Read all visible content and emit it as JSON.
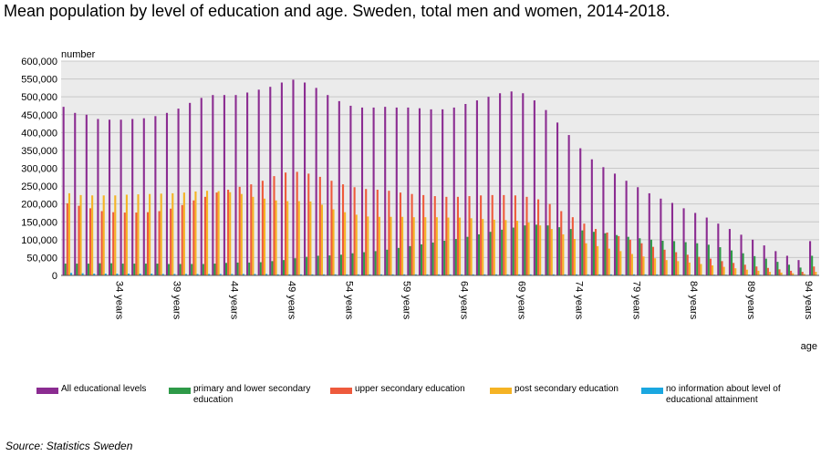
{
  "title": "Mean population by level of education and age. Sweden, total men and women, 2014-2018.",
  "source": "Source: Statistics Sweden",
  "chart_data": {
    "type": "bar",
    "ylabel": "number",
    "xlabel": "age",
    "ylim": [
      0,
      600000
    ],
    "yticks": [
      "0",
      "50,000",
      "100,000",
      "150,000",
      "200,000",
      "250,000",
      "300,000",
      "350,000",
      "400,000",
      "450,000",
      "500,000",
      "550,000",
      "600,000"
    ],
    "grid": true,
    "legend_position": "bottom",
    "categories": [
      "30 years",
      "31 years",
      "32 years",
      "33 years",
      "34 years",
      "35 years",
      "36 years",
      "37 years",
      "38 years",
      "39 years",
      "40 years",
      "41 years",
      "42 years",
      "43 years",
      "44 years",
      "45 years",
      "46 years",
      "47 years",
      "48 years",
      "49 years",
      "50 years",
      "51 years",
      "52 years",
      "53 years",
      "54 years",
      "55 years",
      "56 years",
      "57 years",
      "58 years",
      "59 years",
      "60 years",
      "61 years",
      "62 years",
      "63 years",
      "64 years",
      "65 years",
      "66 years",
      "67 years",
      "68 years",
      "69 years",
      "70 years",
      "71 years",
      "72 years",
      "73 years",
      "74 years",
      "75 years",
      "76 years",
      "77 years",
      "78 years",
      "79 years",
      "80 years",
      "81 years",
      "82 years",
      "83 years",
      "84 years",
      "85 years",
      "86 years",
      "87 years",
      "88 years",
      "89 years",
      "90 years",
      "91 years",
      "92 years",
      "93 years",
      "94 years",
      "95 years"
    ],
    "tick_labels": [
      "34 years",
      "39 years",
      "44 years",
      "49 years",
      "54 years",
      "59 years",
      "64 years",
      "69 years",
      "74 years",
      "79 years",
      "84 years",
      "89 years",
      "94 years"
    ],
    "series": [
      {
        "name": "All educational levels",
        "color": "#8B2C91",
        "values": [
          472000,
          455000,
          450000,
          438000,
          436000,
          436000,
          438000,
          440000,
          446000,
          455000,
          467000,
          483000,
          497000,
          505000,
          505000,
          505000,
          512000,
          520000,
          528000,
          540000,
          548000,
          540000,
          525000,
          505000,
          488000,
          475000,
          470000,
          470000,
          472000,
          470000,
          470000,
          468000,
          465000,
          465000,
          470000,
          480000,
          490000,
          500000,
          510000,
          515000,
          510000,
          490000,
          463000,
          428000,
          393000,
          356000,
          325000,
          303000,
          285000,
          265000,
          247000,
          230000,
          215000,
          203000,
          188000,
          175000,
          162000,
          145000,
          130000,
          114000,
          100000,
          84000,
          68000,
          55000,
          43000,
          96000
        ]
      },
      {
        "name": "primary and lower secondary education",
        "color": "#2E9A48",
        "values": [
          33000,
          33000,
          33000,
          34000,
          34000,
          33000,
          33000,
          33000,
          33000,
          32000,
          32000,
          32000,
          32000,
          33000,
          35000,
          36000,
          36000,
          37000,
          40000,
          43000,
          48000,
          52000,
          55000,
          56000,
          58000,
          62000,
          65000,
          68000,
          72000,
          77000,
          82000,
          87000,
          92000,
          97000,
          102000,
          108000,
          115000,
          122000,
          128000,
          134000,
          140000,
          142000,
          140000,
          135000,
          130000,
          126000,
          122000,
          118000,
          113000,
          108000,
          104000,
          100000,
          97000,
          96000,
          93000,
          90000,
          86000,
          79000,
          70000,
          62000,
          54000,
          47000,
          38000,
          30000,
          22000,
          55000
        ]
      },
      {
        "name": "upper secondary education",
        "color": "#EE5A3C",
        "values": [
          202000,
          195000,
          188000,
          180000,
          177000,
          176000,
          176000,
          177000,
          180000,
          187000,
          197000,
          210000,
          220000,
          232000,
          240000,
          248000,
          255000,
          265000,
          278000,
          288000,
          290000,
          285000,
          276000,
          265000,
          255000,
          247000,
          242000,
          240000,
          237000,
          232000,
          228000,
          225000,
          222000,
          220000,
          220000,
          222000,
          224000,
          225000,
          225000,
          224000,
          220000,
          213000,
          200000,
          180000,
          163000,
          145000,
          130000,
          120000,
          110000,
          100000,
          90000,
          80000,
          72000,
          65000,
          58000,
          52000,
          47000,
          40000,
          35000,
          30000,
          25000,
          21000,
          17000,
          13000,
          10000,
          25000
        ]
      },
      {
        "name": "post secondary education",
        "color": "#F5B324",
        "values": [
          230000,
          225000,
          224000,
          224000,
          224000,
          226000,
          227000,
          228000,
          229000,
          230000,
          232000,
          235000,
          237000,
          236000,
          233000,
          228000,
          220000,
          215000,
          210000,
          208000,
          208000,
          207000,
          198000,
          185000,
          177000,
          170000,
          165000,
          164000,
          164000,
          164000,
          163000,
          163000,
          163000,
          162000,
          162000,
          160000,
          158000,
          156000,
          155000,
          153000,
          148000,
          140000,
          130000,
          115000,
          102000,
          90000,
          82000,
          75000,
          68000,
          60000,
          53000,
          48000,
          43000,
          40000,
          36000,
          32000,
          28000,
          24000,
          20000,
          16000,
          13000,
          10000,
          8000,
          6000,
          4000,
          10000
        ]
      },
      {
        "name": "no information about level of educational attainment",
        "color": "#1AA7E0",
        "values": [
          7000,
          6000,
          5000,
          5000,
          5000,
          5000,
          5000,
          5000,
          4000,
          4000,
          4000,
          4000,
          4000,
          4000,
          4000,
          4000,
          4000,
          4000,
          3000,
          3000,
          3000,
          3000,
          3000,
          3000,
          3000,
          3000,
          3000,
          3000,
          3000,
          3000,
          3000,
          3000,
          3000,
          3000,
          3000,
          3000,
          3000,
          3000,
          3000,
          3000,
          3000,
          3000,
          3000,
          3000,
          3000,
          3000,
          3000,
          3000,
          3000,
          3000,
          3000,
          3000,
          2000,
          2000,
          2000,
          2000,
          2000,
          2000,
          2000,
          2000,
          2000,
          2000,
          1000,
          1000,
          1000,
          1000
        ]
      }
    ]
  }
}
